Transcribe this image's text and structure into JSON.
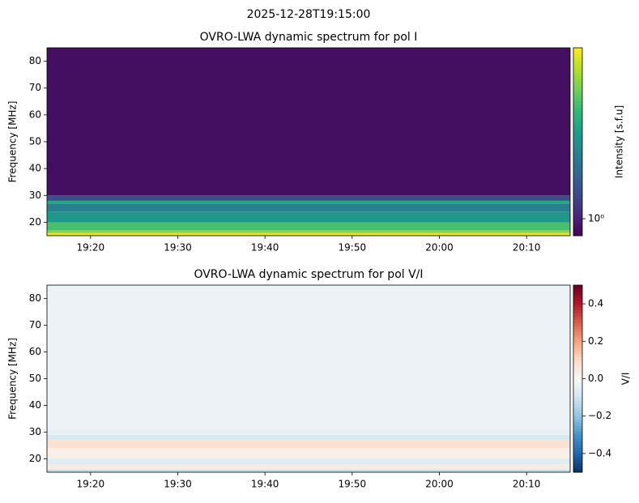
{
  "suptitle": "2025-12-28T19:15:00",
  "chart_data": [
    {
      "type": "heatmap",
      "title": "OVRO-LWA dynamic spectrum for pol I",
      "ylabel": "Frequency [MHz]",
      "colorbar_label": "Intensity [s.f.u]",
      "cmap": "viridis",
      "color_scale": "log",
      "xlim": [
        1155,
        1215
      ],
      "xticks": [
        {
          "value": 1160,
          "label": "19:20"
        },
        {
          "value": 1170,
          "label": "19:30"
        },
        {
          "value": 1180,
          "label": "19:40"
        },
        {
          "value": 1190,
          "label": "19:50"
        },
        {
          "value": 1200,
          "label": "20:00"
        },
        {
          "value": 1210,
          "label": "20:10"
        }
      ],
      "ylim": [
        15,
        85
      ],
      "yticks": [
        20,
        30,
        40,
        50,
        60,
        70,
        80
      ],
      "clim": [
        0.75,
        18
      ],
      "cticks": [
        {
          "value": 1,
          "label": "10⁰"
        }
      ],
      "y_edges": [
        15,
        16,
        17,
        20,
        24,
        27,
        28,
        30,
        85
      ],
      "values": [
        16,
        10,
        7,
        4,
        3,
        5,
        1.6,
        0.85
      ]
    },
    {
      "type": "heatmap",
      "title": "OVRO-LWA dynamic spectrum for pol V/I",
      "ylabel": "Frequency [MHz]",
      "colorbar_label": "V/I",
      "cmap": "RdBu_r",
      "color_scale": "linear",
      "xlim": [
        1155,
        1215
      ],
      "xticks": [
        {
          "value": 1160,
          "label": "19:20"
        },
        {
          "value": 1170,
          "label": "19:30"
        },
        {
          "value": 1180,
          "label": "19:40"
        },
        {
          "value": 1190,
          "label": "19:50"
        },
        {
          "value": 1200,
          "label": "20:00"
        },
        {
          "value": 1210,
          "label": "20:10"
        }
      ],
      "ylim": [
        15,
        85
      ],
      "yticks": [
        20,
        30,
        40,
        50,
        60,
        70,
        80
      ],
      "clim": [
        -0.5,
        0.5
      ],
      "cticks": [
        {
          "value": -0.4,
          "label": "−0.4"
        },
        {
          "value": -0.2,
          "label": "−0.2"
        },
        {
          "value": 0,
          "label": "0.0"
        },
        0.2,
        0.4
      ],
      "y_edges": [
        15,
        16,
        18,
        20,
        24,
        27,
        29,
        31,
        85
      ],
      "values": [
        -0.12,
        0.04,
        -0.06,
        0.03,
        0.08,
        -0.08,
        -0.04,
        -0.03
      ]
    }
  ]
}
